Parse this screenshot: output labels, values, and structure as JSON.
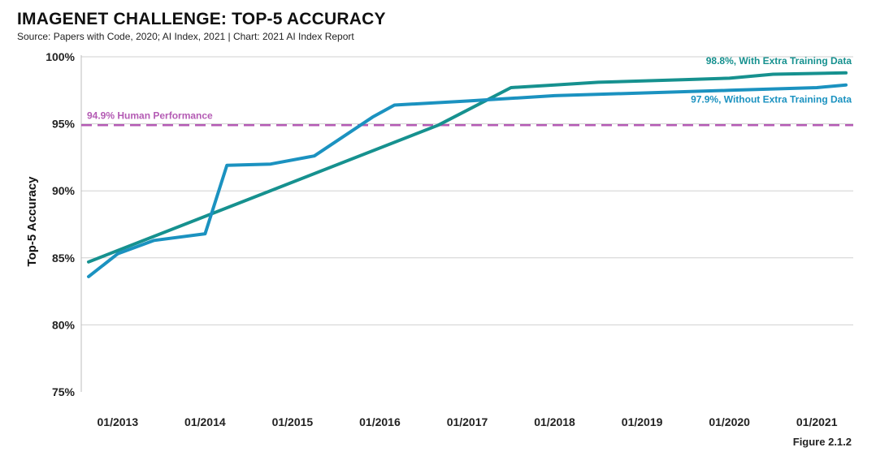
{
  "header": {
    "title": "IMAGENET CHALLENGE: TOP-5 ACCURACY",
    "source": "Source: Papers with Code, 2020; AI Index, 2021 | Chart: 2021 AI Index Report"
  },
  "figure_label": "Figure 2.1.2",
  "colors": {
    "with_extra": "#16918f",
    "without_extra": "#1b92c0",
    "human": "#b45bb4",
    "grid": "#d0d0d0",
    "axis": "#bdbdbd"
  },
  "chart_data": {
    "type": "line",
    "title": "IMAGENET CHALLENGE: TOP-5 ACCURACY",
    "xlabel": "",
    "ylabel": "Top-5 Accuracy",
    "x_type": "date",
    "xlim": [
      "2012-08",
      "2021-06"
    ],
    "ylim": [
      75,
      100
    ],
    "x_ticks": [
      "2013-01",
      "2014-01",
      "2015-01",
      "2016-01",
      "2017-01",
      "2018-01",
      "2019-01",
      "2020-01",
      "2021-01"
    ],
    "x_tick_labels": [
      "01/2013",
      "01/2014",
      "01/2015",
      "01/2016",
      "01/2017",
      "01/2018",
      "01/2019",
      "01/2020",
      "01/2021"
    ],
    "y_ticks": [
      75,
      80,
      85,
      90,
      95,
      100
    ],
    "y_tick_labels": [
      "75%",
      "80%",
      "85%",
      "90%",
      "95%",
      "100%"
    ],
    "grid": true,
    "series": [
      {
        "name": "With Extra Training Data",
        "annotation": "98.8%, With Extra Training Data",
        "color_key": "with_extra",
        "x": [
          "2012-09",
          "2016-09",
          "2017-07",
          "2018-01",
          "2018-07",
          "2019-07",
          "2020-01",
          "2020-07",
          "2021-05"
        ],
        "y": [
          84.7,
          94.9,
          97.7,
          97.9,
          98.1,
          98.3,
          98.4,
          98.7,
          98.8
        ]
      },
      {
        "name": "Without Extra Training Data",
        "annotation": "97.9%, Without Extra Training Data",
        "color_key": "without_extra",
        "x": [
          "2012-09",
          "2013-01",
          "2013-06",
          "2014-01",
          "2014-04",
          "2014-10",
          "2015-04",
          "2015-12",
          "2016-03",
          "2017-01",
          "2018-01",
          "2019-01",
          "2020-01",
          "2021-01",
          "2021-05"
        ],
        "y": [
          83.6,
          85.3,
          86.3,
          86.8,
          91.9,
          92.0,
          92.6,
          95.5,
          96.4,
          96.7,
          97.1,
          97.3,
          97.5,
          97.7,
          97.9
        ]
      }
    ],
    "reference_lines": [
      {
        "label": "94.9% Human Performance",
        "y": 94.9,
        "style": "dashed",
        "color_key": "human"
      }
    ]
  }
}
